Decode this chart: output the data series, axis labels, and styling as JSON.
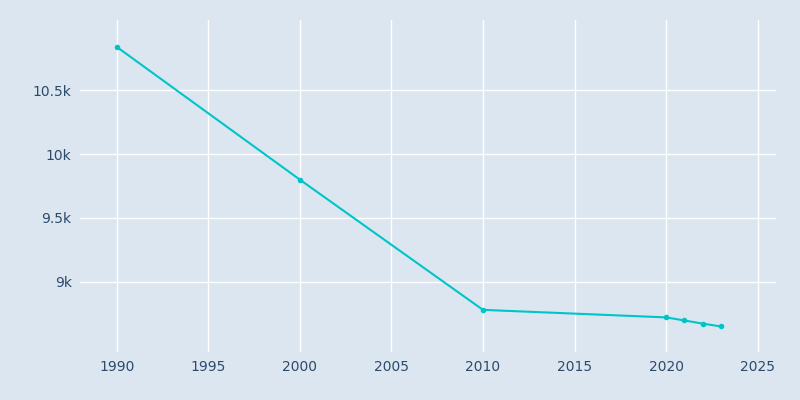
{
  "years": [
    1990,
    2000,
    2010,
    2020,
    2021,
    2022,
    2023
  ],
  "population": [
    10840,
    9800,
    8780,
    8721,
    8697,
    8672,
    8650
  ],
  "line_color": "#00C5C8",
  "marker_color": "#00C5C8",
  "background_color": "#dce6f0",
  "grid_color": "#ffffff",
  "xlim": [
    1988,
    2026
  ],
  "ylim": [
    8450,
    11050
  ],
  "ytick_values": [
    9000,
    9500,
    10000,
    10500
  ],
  "ytick_labels": [
    "9k",
    "9.5k",
    "10k",
    "10.5k"
  ],
  "xtick_values": [
    1990,
    1995,
    2000,
    2005,
    2010,
    2015,
    2020,
    2025
  ],
  "tick_color": "#2d4a6b",
  "line_width": 1.5,
  "marker_size": 3
}
